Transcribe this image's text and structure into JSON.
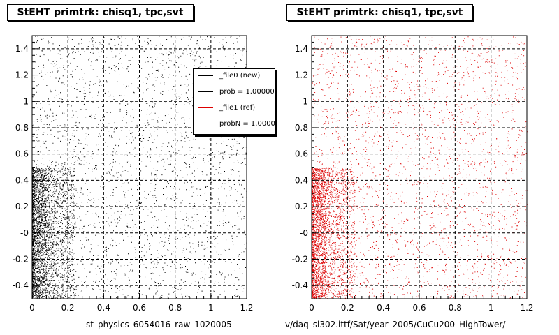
{
  "panels": [
    {
      "title": "StEHT primtrk: chisq1, tpc,svt",
      "xlabel": "st_physics_6054016_raw_1020005",
      "dot_color": "#000000",
      "seed": 11
    },
    {
      "title": "StEHT primtrk: chisq1, tpc,svt",
      "xlabel": "v/daq_sl302.ittf/Sat/year_2005/CuCu200_HighTower/",
      "dot_color": "#dd0000",
      "seed": 37
    }
  ],
  "legend": {
    "entries": [
      {
        "label": "_file0 (new)",
        "color": "#000000"
      },
      {
        "label": "prob = 1.000000",
        "color": "#000000"
      },
      {
        "label": "_file1 (ref)",
        "color": "#dd0000"
      },
      {
        "label": "probN = 1.000000",
        "color": "#dd0000"
      }
    ]
  },
  "footer_stamp": "... ... ... ...",
  "chart_data": {
    "type": "scatter",
    "title": "StEHT primtrk: chisq1, tpc,svt",
    "xlim": [
      0,
      1.2
    ],
    "ylim": [
      -0.5,
      1.5
    ],
    "x_ticks": [
      0,
      0.2,
      0.4,
      0.6,
      0.8,
      1,
      1.2
    ],
    "x_tick_labels": [
      "0",
      "0.2",
      "0.4",
      "0.6",
      "0.8",
      "1",
      "1.2"
    ],
    "y_ticks": [
      -0.4,
      -0.2,
      0,
      0.2,
      0.4,
      0.6,
      0.8,
      1,
      1.2,
      1.4
    ],
    "y_tick_labels": [
      "-0.4",
      "-0.2",
      "-0",
      "0.2",
      "0.4",
      "0.6",
      "0.8",
      "1",
      "1.2",
      "1.4"
    ],
    "grid": true,
    "legend_position": "top-right of left panel",
    "series": [
      {
        "name": "_file0 (new)",
        "color": "#000000"
      },
      {
        "name": "_file1 (ref)",
        "color": "#dd0000"
      }
    ]
  }
}
